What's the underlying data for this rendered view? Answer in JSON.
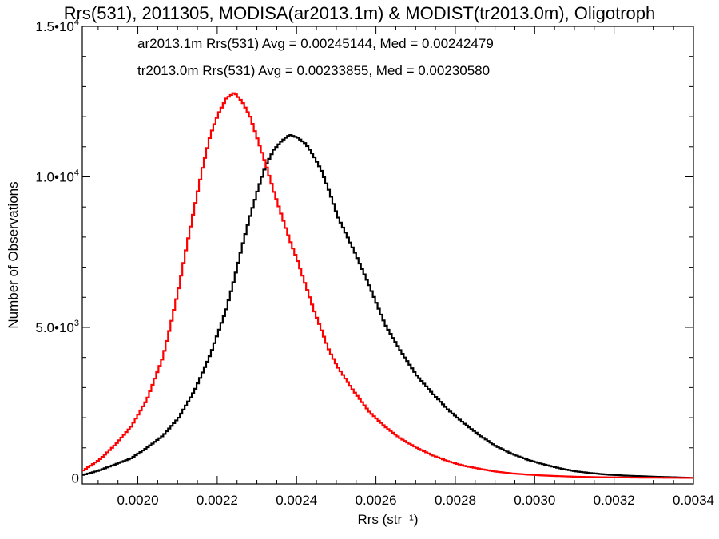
{
  "chart_data": {
    "type": "line",
    "title": "Rrs(531), 2011305, MODISA(ar2013.1m) & MODIST(tr2013.0m), Oligotroph",
    "xlabel": "Rrs (str⁻¹)",
    "ylabel": "Number of Observations",
    "xlim": [
      0.00186,
      0.0034
    ],
    "ylim": [
      -200,
      15000
    ],
    "grid": false,
    "legend_position": "top-left",
    "x_ticks": [
      {
        "value": 0.002,
        "label": "0.0020"
      },
      {
        "value": 0.0022,
        "label": "0.0022"
      },
      {
        "value": 0.0024,
        "label": "0.0024"
      },
      {
        "value": 0.0026,
        "label": "0.0026"
      },
      {
        "value": 0.0028,
        "label": "0.0028"
      },
      {
        "value": 0.003,
        "label": "0.0030"
      },
      {
        "value": 0.0032,
        "label": "0.0032"
      },
      {
        "value": 0.0034,
        "label": "0.0034"
      }
    ],
    "y_ticks": [
      {
        "value": 0,
        "label": "0",
        "sup": ""
      },
      {
        "value": 5000,
        "label": "5.0•10",
        "sup": "3"
      },
      {
        "value": 10000,
        "label": "1.0•10",
        "sup": "4"
      },
      {
        "value": 15000,
        "label": "1.5•10",
        "sup": "4"
      }
    ],
    "series": [
      {
        "name": "ar2013.1m Rrs(531) Avg = 0.00245144, Med = 0.00242479",
        "color": "#000000",
        "x": [
          0.00186,
          0.0019,
          0.00194,
          0.00198,
          0.00202,
          0.00206,
          0.0021,
          0.00214,
          0.00218,
          0.00222,
          0.00224,
          0.00226,
          0.00228,
          0.0023,
          0.00232,
          0.00234,
          0.00236,
          0.00238,
          0.0024,
          0.00242,
          0.00244,
          0.00246,
          0.00248,
          0.0025,
          0.00254,
          0.00258,
          0.00262,
          0.00266,
          0.0027,
          0.00274,
          0.00278,
          0.00282,
          0.00286,
          0.0029,
          0.00294,
          0.00298,
          0.00302,
          0.00306,
          0.0031,
          0.00314,
          0.00318,
          0.00322,
          0.00326,
          0.0033,
          0.00334,
          0.0034
        ],
        "y": [
          100,
          250,
          450,
          650,
          1000,
          1400,
          2000,
          2900,
          4100,
          5600,
          6600,
          7700,
          8700,
          9600,
          10400,
          10900,
          11200,
          11400,
          11300,
          11100,
          10700,
          10200,
          9500,
          8700,
          7600,
          6400,
          5100,
          4200,
          3400,
          2800,
          2250,
          1800,
          1400,
          1050,
          800,
          600,
          450,
          320,
          220,
          160,
          110,
          80,
          60,
          40,
          25,
          0
        ]
      },
      {
        "name": "tr2013.0m Rrs(531) Avg = 0.00233855, Med = 0.00230580",
        "color": "#ff0000",
        "x": [
          0.00186,
          0.0019,
          0.00194,
          0.00198,
          0.00202,
          0.00206,
          0.00208,
          0.0021,
          0.00212,
          0.00214,
          0.00216,
          0.00218,
          0.0022,
          0.00222,
          0.00224,
          0.00226,
          0.00228,
          0.0023,
          0.00232,
          0.00234,
          0.00236,
          0.00238,
          0.0024,
          0.00242,
          0.00244,
          0.00246,
          0.00248,
          0.0025,
          0.00254,
          0.00258,
          0.00262,
          0.00266,
          0.0027,
          0.00274,
          0.00278,
          0.00282,
          0.00286,
          0.0029,
          0.00294,
          0.00298,
          0.00302,
          0.00306,
          0.0031,
          0.00314,
          0.00318,
          0.00322,
          0.00326,
          0.0033,
          0.00334,
          0.0034
        ],
        "y": [
          250,
          600,
          1100,
          1700,
          2600,
          4000,
          5100,
          6300,
          7700,
          9000,
          10300,
          11400,
          12100,
          12600,
          12800,
          12500,
          12000,
          11200,
          10400,
          9500,
          8700,
          7900,
          7200,
          6400,
          5600,
          4900,
          4200,
          3700,
          2900,
          2200,
          1700,
          1300,
          1000,
          750,
          550,
          400,
          300,
          210,
          150,
          110,
          80,
          60,
          40,
          30,
          20,
          15,
          10,
          8,
          5,
          0
        ]
      }
    ]
  }
}
